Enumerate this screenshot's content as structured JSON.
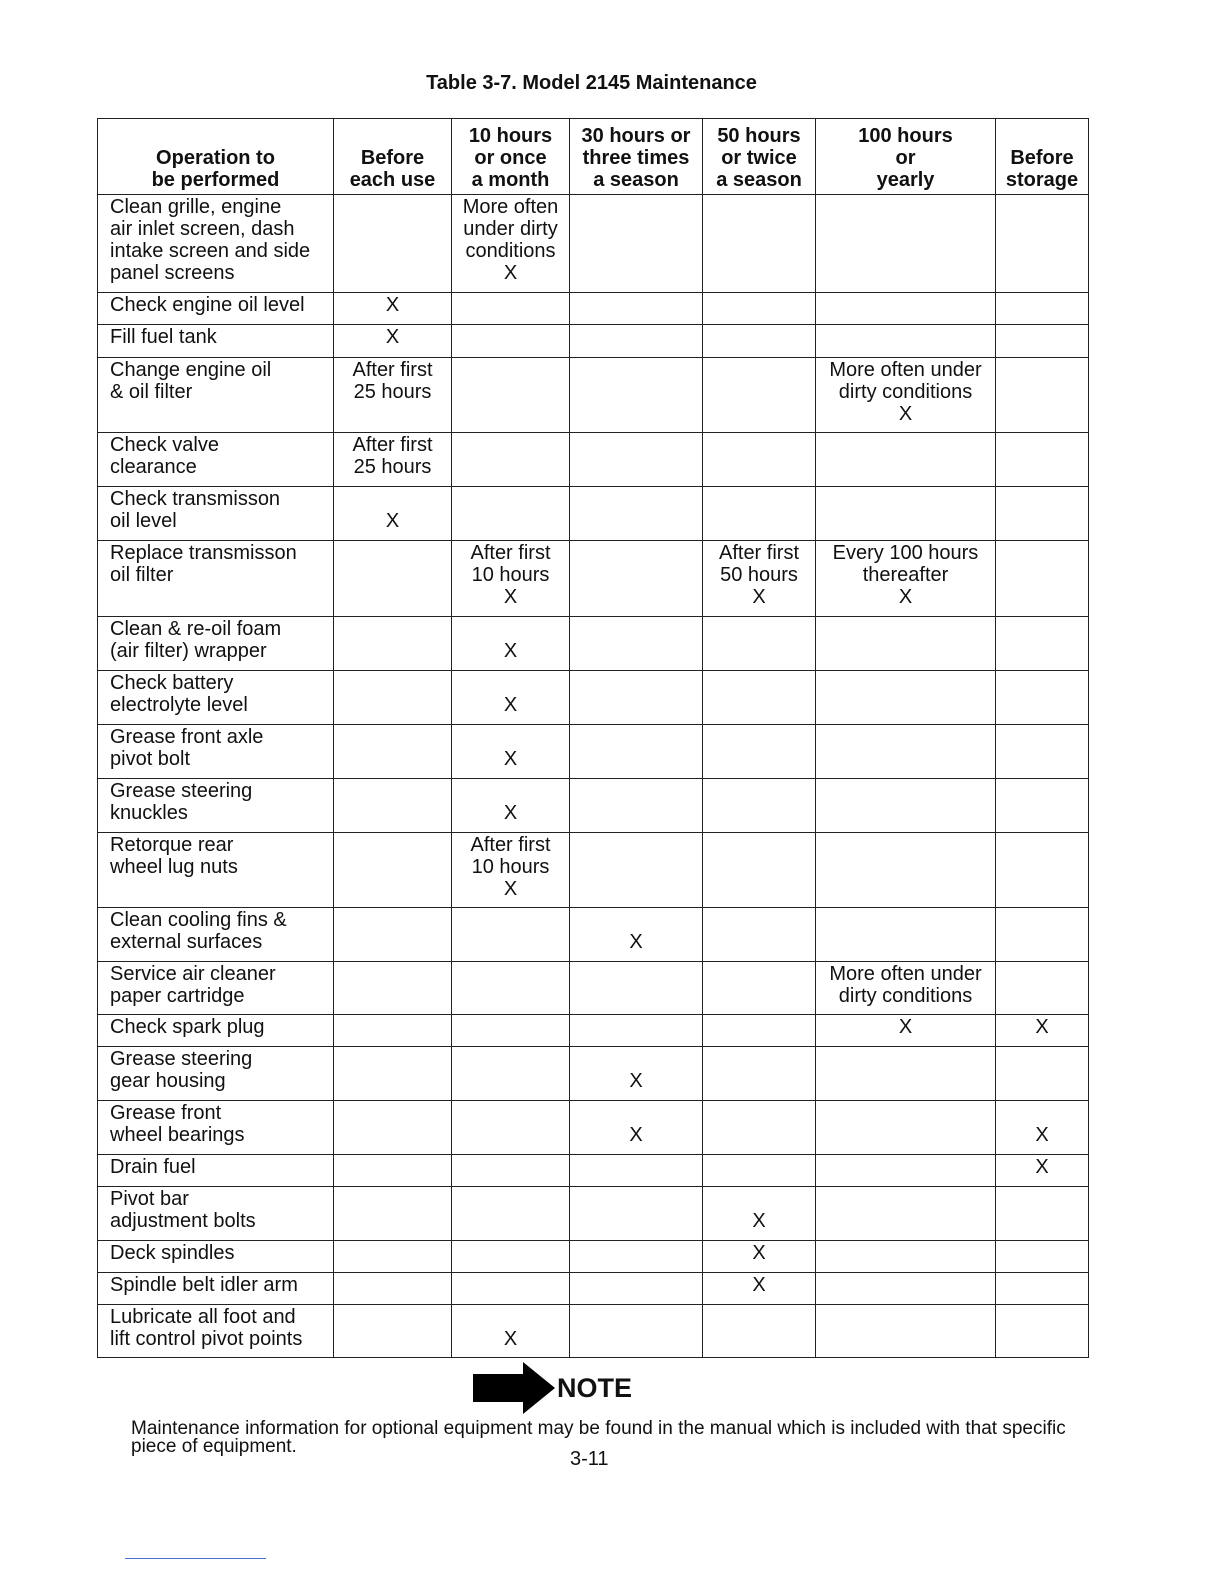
{
  "title": "Table 3-7. Model 2145 Maintenance",
  "headers": [
    "Operation to\nbe performed",
    "Before\neach use",
    "10 hours\nor once\na month",
    "30 hours or\nthree times\na season",
    "50 hours\nor twice\na season",
    "100 hours\nor\nyearly",
    "Before\nstorage"
  ],
  "rows": [
    [
      "Clean grille, engine\nair inlet screen, dash\nintake screen and side\npanel screens",
      "",
      "More often\nunder dirty\nconditions\nX",
      "",
      "",
      "",
      ""
    ],
    [
      "Check engine oil level",
      "X",
      "",
      "",
      "",
      "",
      ""
    ],
    [
      "Fill fuel tank",
      "X",
      "",
      "",
      "",
      "",
      ""
    ],
    [
      "Change engine oil\n& oil filter",
      "After first\n25 hours",
      "",
      "",
      "",
      "More often under\ndirty conditions\nX",
      ""
    ],
    [
      "Check valve\nclearance",
      "After first\n25 hours",
      "",
      "",
      "",
      "",
      ""
    ],
    [
      "Check transmisson\noil level",
      "\nX",
      "",
      "",
      "",
      "",
      ""
    ],
    [
      "Replace transmisson\noil filter",
      "",
      "After first\n10 hours\nX",
      "",
      "After first\n50 hours\nX",
      "Every 100 hours\nthereafter\nX",
      ""
    ],
    [
      "Clean & re-oil foam\n(air filter) wrapper",
      "",
      "\nX",
      "",
      "",
      "",
      ""
    ],
    [
      "Check battery\nelectrolyte level",
      "",
      "\nX",
      "",
      "",
      "",
      ""
    ],
    [
      "Grease front axle\npivot bolt",
      "",
      "\nX",
      "",
      "",
      "",
      ""
    ],
    [
      "Grease steering\nknuckles",
      "",
      "\nX",
      "",
      "",
      "",
      ""
    ],
    [
      "Retorque rear\nwheel lug nuts",
      "",
      "After first\n10 hours\nX",
      "",
      "",
      "",
      ""
    ],
    [
      "Clean cooling fins &\nexternal surfaces",
      "",
      "",
      "\nX",
      "",
      "",
      ""
    ],
    [
      "Service air cleaner\npaper cartridge",
      "",
      "",
      "",
      "",
      "More often under\ndirty conditions",
      ""
    ],
    [
      "Check spark plug",
      "",
      "",
      "",
      "",
      "X",
      "X"
    ],
    [
      "Grease steering\ngear housing",
      "",
      "",
      "\nX",
      "",
      "",
      ""
    ],
    [
      "Grease front\nwheel bearings",
      "",
      "",
      "\nX",
      "",
      "",
      "\nX"
    ],
    [
      "Drain fuel",
      "",
      "",
      "",
      "",
      "",
      "X"
    ],
    [
      "Pivot bar\nadjustment bolts",
      "",
      "",
      "",
      "\nX",
      "",
      ""
    ],
    [
      "Deck spindles",
      "",
      "",
      "",
      "X",
      "",
      ""
    ],
    [
      "Spindle belt idler arm",
      "",
      "",
      "",
      "X",
      "",
      ""
    ],
    [
      "Lubricate all foot and\nlift control pivot points",
      "",
      "\nX",
      "",
      "",
      "",
      ""
    ]
  ],
  "note": {
    "icon": "arrow-right-icon",
    "label": "NOTE",
    "text": "Maintenance information for optional equipment may be found in the manual which is included with that specific piece of equipment."
  },
  "page_number": "3-11"
}
